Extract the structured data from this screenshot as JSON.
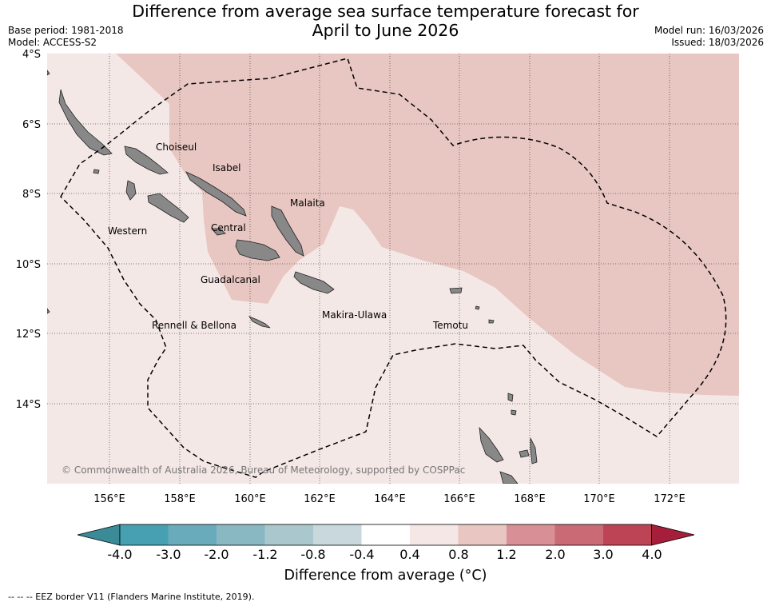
{
  "title_line1": "Difference from average sea surface temperature forecast for",
  "title_line2": "April to June 2026",
  "base_period": "Base period: 1981-2018",
  "model": "Model: ACCESS-S2",
  "model_run": "Model run: 16/03/2026",
  "issued": "Issued: 18/03/2026",
  "copyright": "© Commonwealth of Australia 2026, Bureau of Meteorology, supported by COSPPac",
  "lat_labels": [
    "4°S",
    "6°S",
    "8°S",
    "10°S",
    "12°S",
    "14°S"
  ],
  "lon_labels": [
    "156°E",
    "158°E",
    "160°E",
    "162°E",
    "164°E",
    "166°E",
    "168°E",
    "170°E",
    "172°E"
  ],
  "provinces": [
    "Choiseul",
    "Isabel",
    "Western",
    "Malaita",
    "Central",
    "Guadalcanal",
    "Rennell & Bellona",
    "Makira-Ulawa",
    "Temotu"
  ],
  "colorbar": {
    "title": "Difference from average (°C)",
    "tick_labels": [
      "-4.0",
      "-3.0",
      "-2.0",
      "-1.2",
      "-0.8",
      "-0.4",
      "0.4",
      "0.8",
      "1.2",
      "2.0",
      "3.0",
      "4.0"
    ],
    "colors": [
      "#3a8a98",
      "#46a0b2",
      "#6aabbb",
      "#8ab8c2",
      "#a9c7cc",
      "#c9d8dc",
      "#ffffff",
      "#f5e7e5",
      "#e9c6c1",
      "#d88f96",
      "#c96a74",
      "#bd4454",
      "#a51f3b"
    ]
  },
  "categories": {
    "light_warm": "#f4e8e6",
    "warm": "#e8c6c1"
  },
  "land_color": "#888888",
  "footnote": "--  --  -- EEZ border V11 (Flanders Marine Institute, 2019)."
}
